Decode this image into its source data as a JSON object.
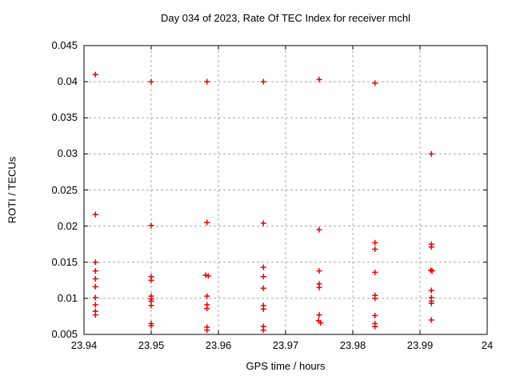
{
  "chart_data": {
    "type": "scatter",
    "title": "Day 034 of 2023, Rate Of TEC Index for receiver mchl",
    "xlabel": "GPS time / hours",
    "ylabel": "ROTI / TECUs",
    "xlim": [
      23.94,
      24
    ],
    "ylim": [
      0.005,
      0.045
    ],
    "xtick_values": [
      23.94,
      23.95,
      23.96,
      23.97,
      23.98,
      23.99,
      24
    ],
    "xtick_labels": [
      "23.94",
      "23.95",
      "23.96",
      "23.97",
      "23.98",
      "23.99",
      "24"
    ],
    "ytick_values": [
      0.005,
      0.01,
      0.015,
      0.02,
      0.025,
      0.03,
      0.035,
      0.04,
      0.045
    ],
    "ytick_labels": [
      "0.005",
      "0.01",
      "0.015",
      "0.02",
      "0.025",
      "0.03",
      "0.035",
      "0.04",
      "0.045"
    ],
    "grid": true,
    "legend_position": "none",
    "marker": "plus",
    "colors": {
      "points": "#ee0000",
      "grid": "#a8a8a8",
      "axis": "#000000",
      "background": "#ffffff",
      "text": "#000000"
    },
    "series": [
      {
        "name": "ROTI",
        "points": [
          [
            23.9417,
            0.041
          ],
          [
            23.9417,
            0.0216
          ],
          [
            23.9417,
            0.015
          ],
          [
            23.9417,
            0.0138
          ],
          [
            23.9417,
            0.0127
          ],
          [
            23.9417,
            0.0116
          ],
          [
            23.9417,
            0.0101
          ],
          [
            23.9417,
            0.0091
          ],
          [
            23.9417,
            0.0082
          ],
          [
            23.9417,
            0.0077
          ],
          [
            23.95,
            0.04
          ],
          [
            23.95,
            0.0201
          ],
          [
            23.95,
            0.013
          ],
          [
            23.95,
            0.0125
          ],
          [
            23.95,
            0.0103
          ],
          [
            23.95,
            0.0099
          ],
          [
            23.95,
            0.0096
          ],
          [
            23.95,
            0.009
          ],
          [
            23.95,
            0.0065
          ],
          [
            23.95,
            0.0062
          ],
          [
            23.9583,
            0.04
          ],
          [
            23.9583,
            0.0205
          ],
          [
            23.9581,
            0.0132
          ],
          [
            23.9585,
            0.0131
          ],
          [
            23.9583,
            0.0103
          ],
          [
            23.9583,
            0.0091
          ],
          [
            23.9583,
            0.0086
          ],
          [
            23.9583,
            0.006
          ],
          [
            23.9583,
            0.0056
          ],
          [
            23.9667,
            0.04
          ],
          [
            23.9667,
            0.0204
          ],
          [
            23.9667,
            0.0143
          ],
          [
            23.9667,
            0.013
          ],
          [
            23.9667,
            0.0114
          ],
          [
            23.9667,
            0.009
          ],
          [
            23.9667,
            0.0085
          ],
          [
            23.9667,
            0.0061
          ],
          [
            23.9667,
            0.0056
          ],
          [
            23.975,
            0.0403
          ],
          [
            23.975,
            0.0195
          ],
          [
            23.975,
            0.0138
          ],
          [
            23.975,
            0.012
          ],
          [
            23.975,
            0.0115
          ],
          [
            23.975,
            0.0077
          ],
          [
            23.9749,
            0.0069
          ],
          [
            23.9752,
            0.0066
          ],
          [
            23.9833,
            0.0398
          ],
          [
            23.9833,
            0.0177
          ],
          [
            23.9833,
            0.0168
          ],
          [
            23.9833,
            0.0136
          ],
          [
            23.9833,
            0.0104
          ],
          [
            23.9833,
            0.01
          ],
          [
            23.9833,
            0.0076
          ],
          [
            23.9833,
            0.0065
          ],
          [
            23.9833,
            0.0061
          ],
          [
            23.9917,
            0.03
          ],
          [
            23.9917,
            0.0175
          ],
          [
            23.9917,
            0.0171
          ],
          [
            23.9916,
            0.0139
          ],
          [
            23.9918,
            0.0138
          ],
          [
            23.9917,
            0.0111
          ],
          [
            23.9917,
            0.0101
          ],
          [
            23.9917,
            0.0096
          ],
          [
            23.9917,
            0.0093
          ],
          [
            23.9917,
            0.007
          ]
        ]
      }
    ]
  }
}
